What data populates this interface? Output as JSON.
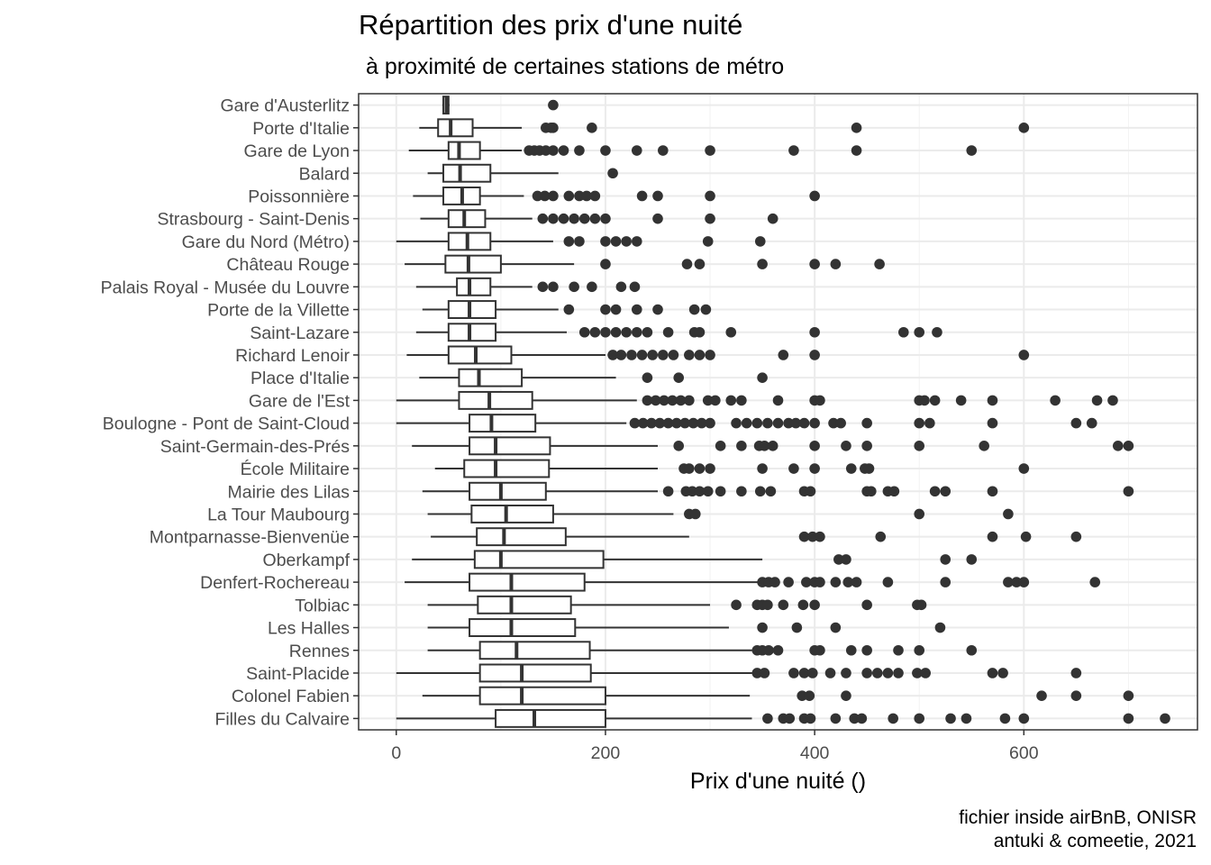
{
  "chart_data": {
    "type": "boxplot",
    "orientation": "horizontal",
    "title": "Répartition des prix d'une nuité",
    "subtitle": "à proximité de certaines stations de métro",
    "xlabel": "Prix d'une nuité ()",
    "ylabel": "",
    "xlim": [
      -36,
      766
    ],
    "xticks": [
      0,
      200,
      400,
      600
    ],
    "grid": true,
    "caption": [
      "fichier inside airBnB, ONISR",
      "antuki & comeetie, 2021"
    ],
    "categories": [
      {
        "name": "Gare d'Austerlitz",
        "whisker_low": 44,
        "q1": 45,
        "median": 48,
        "q3": 50,
        "whisker_high": 51,
        "outliers": [
          150
        ]
      },
      {
        "name": "Porte d'Italie",
        "whisker_low": 22,
        "q1": 40,
        "median": 52,
        "q3": 73,
        "whisker_high": 120,
        "outliers": [
          143,
          148,
          150,
          187,
          440,
          600
        ]
      },
      {
        "name": "Gare de Lyon",
        "whisker_low": 12,
        "q1": 50,
        "median": 60,
        "q3": 80,
        "whisker_high": 120,
        "outliers": [
          127,
          132,
          137,
          143,
          150,
          160,
          175,
          200,
          230,
          255,
          300,
          380,
          440,
          550
        ]
      },
      {
        "name": "Balard",
        "whisker_low": 30,
        "q1": 45,
        "median": 61,
        "q3": 90,
        "whisker_high": 155,
        "outliers": [
          207
        ]
      },
      {
        "name": "Poissonnière",
        "whisker_low": 16,
        "q1": 45,
        "median": 63,
        "q3": 80,
        "whisker_high": 122,
        "outliers": [
          135,
          142,
          150,
          165,
          175,
          182,
          190,
          235,
          250,
          300,
          400
        ]
      },
      {
        "name": "Strasbourg - Saint-Denis",
        "whisker_low": 23,
        "q1": 50,
        "median": 65,
        "q3": 85,
        "whisker_high": 130,
        "outliers": [
          140,
          150,
          160,
          170,
          180,
          190,
          200,
          250,
          300,
          360
        ]
      },
      {
        "name": "Gare du Nord (Métro)",
        "whisker_low": 0,
        "q1": 50,
        "median": 68,
        "q3": 90,
        "whisker_high": 150,
        "outliers": [
          165,
          175,
          200,
          210,
          220,
          230,
          298,
          348
        ]
      },
      {
        "name": "Château Rouge",
        "whisker_low": 8,
        "q1": 47,
        "median": 69,
        "q3": 100,
        "whisker_high": 170,
        "outliers": [
          200,
          278,
          290,
          350,
          400,
          420,
          462
        ]
      },
      {
        "name": "Palais Royal - Musée du Louvre",
        "whisker_low": 19,
        "q1": 58,
        "median": 70,
        "q3": 90,
        "whisker_high": 130,
        "outliers": [
          140,
          150,
          170,
          187,
          215,
          228
        ]
      },
      {
        "name": "Porte de la Villette",
        "whisker_low": 25,
        "q1": 50,
        "median": 70,
        "q3": 95,
        "whisker_high": 155,
        "outliers": [
          165,
          200,
          210,
          230,
          250,
          285,
          296
        ]
      },
      {
        "name": "Saint-Lazare",
        "whisker_low": 19,
        "q1": 50,
        "median": 70,
        "q3": 95,
        "whisker_high": 163,
        "outliers": [
          180,
          190,
          200,
          210,
          220,
          230,
          240,
          260,
          285,
          290,
          320,
          400,
          485,
          500,
          517
        ]
      },
      {
        "name": "Richard Lenoir",
        "whisker_low": 10,
        "q1": 50,
        "median": 76,
        "q3": 110,
        "whisker_high": 200,
        "outliers": [
          207,
          215,
          225,
          235,
          245,
          255,
          265,
          280,
          290,
          300,
          370,
          400,
          600
        ]
      },
      {
        "name": "Place d'Italie",
        "whisker_low": 22,
        "q1": 60,
        "median": 79,
        "q3": 120,
        "whisker_high": 210,
        "outliers": [
          240,
          270,
          350
        ]
      },
      {
        "name": "Gare de l'Est",
        "whisker_low": 0,
        "q1": 60,
        "median": 89,
        "q3": 130,
        "whisker_high": 230,
        "outliers": [
          240,
          248,
          256,
          264,
          272,
          280,
          298,
          305,
          320,
          330,
          365,
          400,
          405,
          500,
          505,
          515,
          540,
          570,
          630,
          670,
          685
        ]
      },
      {
        "name": "Boulogne - Pont de Saint-Cloud",
        "whisker_low": 0,
        "q1": 70,
        "median": 91,
        "q3": 133,
        "whisker_high": 220,
        "outliers": [
          228,
          236,
          244,
          252,
          260,
          268,
          276,
          284,
          292,
          300,
          325,
          335,
          345,
          355,
          365,
          375,
          382,
          390,
          400,
          418,
          425,
          450,
          500,
          510,
          570,
          650,
          665
        ]
      },
      {
        "name": "Saint-Germain-des-Prés",
        "whisker_low": 15,
        "q1": 70,
        "median": 95,
        "q3": 147,
        "whisker_high": 250,
        "outliers": [
          270,
          310,
          330,
          347,
          352,
          360,
          400,
          430,
          450,
          500,
          562,
          690,
          700
        ]
      },
      {
        "name": "École Militaire",
        "whisker_low": 37,
        "q1": 65,
        "median": 95,
        "q3": 146,
        "whisker_high": 250,
        "outliers": [
          275,
          280,
          290,
          300,
          350,
          380,
          400,
          435,
          448,
          452,
          600
        ]
      },
      {
        "name": "Mairie des Lilas",
        "whisker_low": 25,
        "q1": 70,
        "median": 100,
        "q3": 143,
        "whisker_high": 250,
        "outliers": [
          260,
          277,
          283,
          290,
          298,
          310,
          330,
          348,
          358,
          390,
          396,
          450,
          454,
          470,
          476,
          515,
          525,
          570,
          700
        ]
      },
      {
        "name": "La Tour Maubourg",
        "whisker_low": 30,
        "q1": 72,
        "median": 105,
        "q3": 150,
        "whisker_high": 265,
        "outliers": [
          280,
          286,
          500,
          585
        ]
      },
      {
        "name": "Montparnasse-Bienvenüe",
        "whisker_low": 33,
        "q1": 77,
        "median": 103,
        "q3": 162,
        "whisker_high": 280,
        "outliers": [
          390,
          398,
          405,
          463,
          570,
          602,
          650
        ]
      },
      {
        "name": "Oberkampf",
        "whisker_low": 15,
        "q1": 75,
        "median": 100,
        "q3": 198,
        "whisker_high": 350,
        "outliers": [
          423,
          430,
          525,
          550
        ]
      },
      {
        "name": "Denfert-Rochereau",
        "whisker_low": 8,
        "q1": 70,
        "median": 110,
        "q3": 180,
        "whisker_high": 350,
        "outliers": [
          350,
          356,
          362,
          375,
          392,
          400,
          405,
          420,
          432,
          440,
          470,
          525,
          585,
          593,
          600,
          668
        ]
      },
      {
        "name": "Tolbiac",
        "whisker_low": 30,
        "q1": 78,
        "median": 110,
        "q3": 167,
        "whisker_high": 300,
        "outliers": [
          325,
          345,
          350,
          355,
          370,
          389,
          400,
          450,
          498,
          502
        ]
      },
      {
        "name": "Les Halles",
        "whisker_low": 30,
        "q1": 70,
        "median": 110,
        "q3": 171,
        "whisker_high": 318,
        "outliers": [
          350,
          383,
          420,
          520
        ]
      },
      {
        "name": "Rennes",
        "whisker_low": 30,
        "q1": 80,
        "median": 115,
        "q3": 185,
        "whisker_high": 340,
        "outliers": [
          345,
          350,
          356,
          365,
          400,
          405,
          435,
          450,
          480,
          500,
          550
        ]
      },
      {
        "name": "Saint-Placide",
        "whisker_low": 0,
        "q1": 80,
        "median": 120,
        "q3": 186,
        "whisker_high": 340,
        "outliers": [
          345,
          352,
          380,
          390,
          398,
          415,
          430,
          450,
          460,
          470,
          480,
          498,
          506,
          570,
          580,
          650
        ]
      },
      {
        "name": "Colonel Fabien",
        "whisker_low": 25,
        "q1": 80,
        "median": 120,
        "q3": 200,
        "whisker_high": 338,
        "outliers": [
          388,
          395,
          430,
          617,
          650,
          700
        ]
      },
      {
        "name": "Filles du Calvaire",
        "whisker_low": 0,
        "q1": 95,
        "median": 132,
        "q3": 200,
        "whisker_high": 340,
        "outliers": [
          355,
          370,
          376,
          390,
          396,
          420,
          438,
          445,
          475,
          500,
          530,
          545,
          582,
          600,
          700,
          735
        ]
      }
    ]
  }
}
